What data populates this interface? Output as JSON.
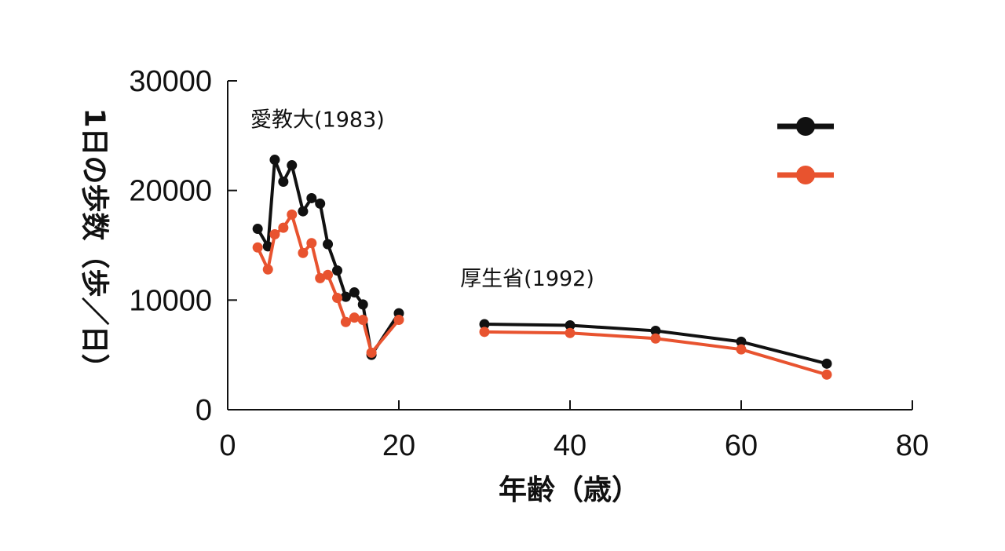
{
  "chart_data": {
    "type": "line",
    "title": "",
    "xlabel": "年齢（歳）",
    "ylabel": "1日の歩数（歩／日）",
    "xlim": [
      0,
      80
    ],
    "ylim": [
      0,
      30000
    ],
    "xticks": [
      0,
      20,
      40,
      60,
      80
    ],
    "yticks": [
      0,
      10000,
      20000,
      30000
    ],
    "xtick_labels": [
      "0",
      "20",
      "40",
      "60",
      "80"
    ],
    "ytick_labels": [
      "0",
      "10000",
      "20000",
      "30000"
    ],
    "grid": false,
    "legend_position": "top-right",
    "legend_labels_visible": false,
    "annotations": [
      {
        "text": "愛教大(1983)",
        "x": 10.5,
        "y": 25800
      },
      {
        "text": "厚生省(1992)",
        "x": 35,
        "y": 11300
      }
    ],
    "colors": {
      "series1": "#111111",
      "series2": "#e8532f"
    },
    "series": [
      {
        "name": "series-1",
        "color": "#111111",
        "segments": [
          {
            "x": [
              3.5,
              4.7,
              5.5,
              6.5,
              7.5,
              8.8,
              9.8,
              10.8,
              11.7,
              12.8,
              13.8,
              14.8,
              15.8,
              16.8,
              20
            ],
            "y": [
              16500,
              14900,
              22800,
              20800,
              22300,
              18100,
              19300,
              18800,
              15100,
              12700,
              10300,
              10700,
              9600,
              5000,
              8800
            ]
          },
          {
            "x": [
              30,
              40,
              50,
              60,
              70
            ],
            "y": [
              7800,
              7700,
              7200,
              6200,
              4200
            ]
          }
        ]
      },
      {
        "name": "series-2",
        "color": "#e8532f",
        "segments": [
          {
            "x": [
              3.5,
              4.7,
              5.5,
              6.5,
              7.5,
              8.8,
              9.8,
              10.8,
              11.7,
              12.8,
              13.8,
              14.8,
              15.8,
              16.8,
              20
            ],
            "y": [
              14800,
              12800,
              16000,
              16600,
              17800,
              14300,
              15200,
              12000,
              12300,
              10200,
              8000,
              8400,
              8200,
              5200,
              8200
            ]
          },
          {
            "x": [
              30,
              40,
              50,
              60,
              70
            ],
            "y": [
              7100,
              7000,
              6500,
              5500,
              3200
            ]
          }
        ]
      }
    ]
  }
}
